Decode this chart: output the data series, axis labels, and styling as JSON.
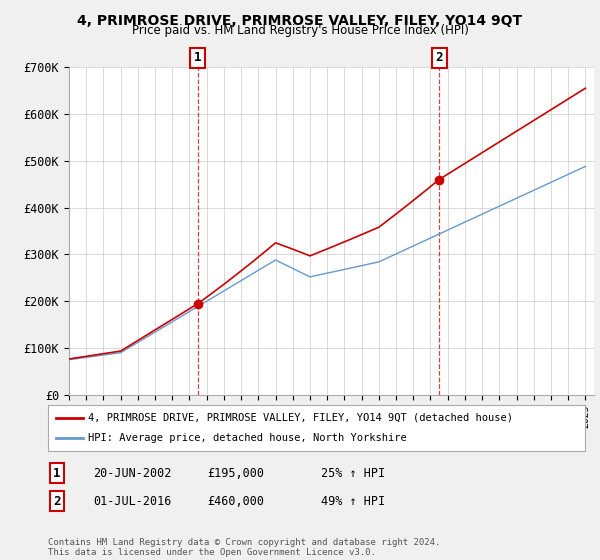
{
  "title": "4, PRIMROSE DRIVE, PRIMROSE VALLEY, FILEY, YO14 9QT",
  "subtitle": "Price paid vs. HM Land Registry's House Price Index (HPI)",
  "ylim": [
    0,
    700000
  ],
  "yticks": [
    0,
    100000,
    200000,
    300000,
    400000,
    500000,
    600000,
    700000
  ],
  "ytick_labels": [
    "£0",
    "£100K",
    "£200K",
    "£300K",
    "£400K",
    "£500K",
    "£600K",
    "£700K"
  ],
  "xlim": [
    1995,
    2025.5
  ],
  "sale1_date": 2002.47,
  "sale1_price": 195000,
  "sale1_label": "1",
  "sale1_text": "20-JUN-2002",
  "sale1_amount": "£195,000",
  "sale1_hpi": "25% ↑ HPI",
  "sale2_date": 2016.5,
  "sale2_price": 460000,
  "sale2_label": "2",
  "sale2_text": "01-JUL-2016",
  "sale2_amount": "£460,000",
  "sale2_hpi": "49% ↑ HPI",
  "red_color": "#cc0000",
  "blue_color": "#6699cc",
  "legend_label1": "4, PRIMROSE DRIVE, PRIMROSE VALLEY, FILEY, YO14 9QT (detached house)",
  "legend_label2": "HPI: Average price, detached house, North Yorkshire",
  "footer": "Contains HM Land Registry data © Crown copyright and database right 2024.\nThis data is licensed under the Open Government Licence v3.0.",
  "background_color": "#f0f0f0",
  "plot_background": "#ffffff"
}
